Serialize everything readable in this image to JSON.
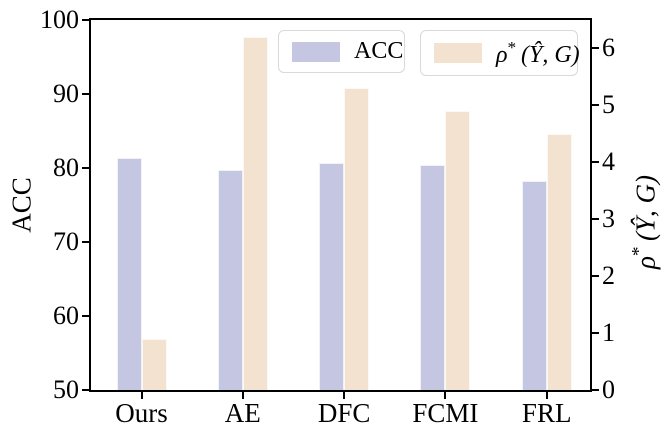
{
  "chart_data": {
    "type": "bar",
    "title": "",
    "xlabel": "",
    "categories": [
      "Ours",
      "AE",
      "DFC",
      "FCMI",
      "FRL"
    ],
    "series": [
      {
        "name": "ACC",
        "axis": "left",
        "color": "#c5c6e1",
        "values": [
          81.4,
          79.7,
          80.7,
          80.4,
          78.2
        ]
      },
      {
        "name": "rho*(Y-hat,G)",
        "axis": "right",
        "color": "#f2e2cf",
        "values": [
          0.9,
          6.2,
          5.3,
          4.9,
          4.5
        ]
      }
    ],
    "left_axis": {
      "label": "ACC",
      "ticks": [
        100,
        90,
        80,
        70,
        60,
        50
      ],
      "lim": [
        50,
        100
      ]
    },
    "right_axis": {
      "label_rho": "ρ",
      "label_sup": "*",
      "label_rest": "(Ŷ, G)",
      "ticks": [
        6,
        5,
        4,
        3,
        2,
        1,
        0
      ],
      "lim": [
        0,
        6.5
      ]
    },
    "legend": {
      "position": "upper-inside",
      "acc_label": "ACC",
      "rho_label_rho": "ρ",
      "rho_label_sup": "*",
      "rho_label_rest": "(Ŷ, G)"
    },
    "grid": false,
    "colors": {
      "acc_bar": "#c5c6e1",
      "rho_bar": "#f2e2cf",
      "axis": "#000000",
      "legend_border": "#d9d9d9",
      "background": "#ffffff"
    }
  }
}
